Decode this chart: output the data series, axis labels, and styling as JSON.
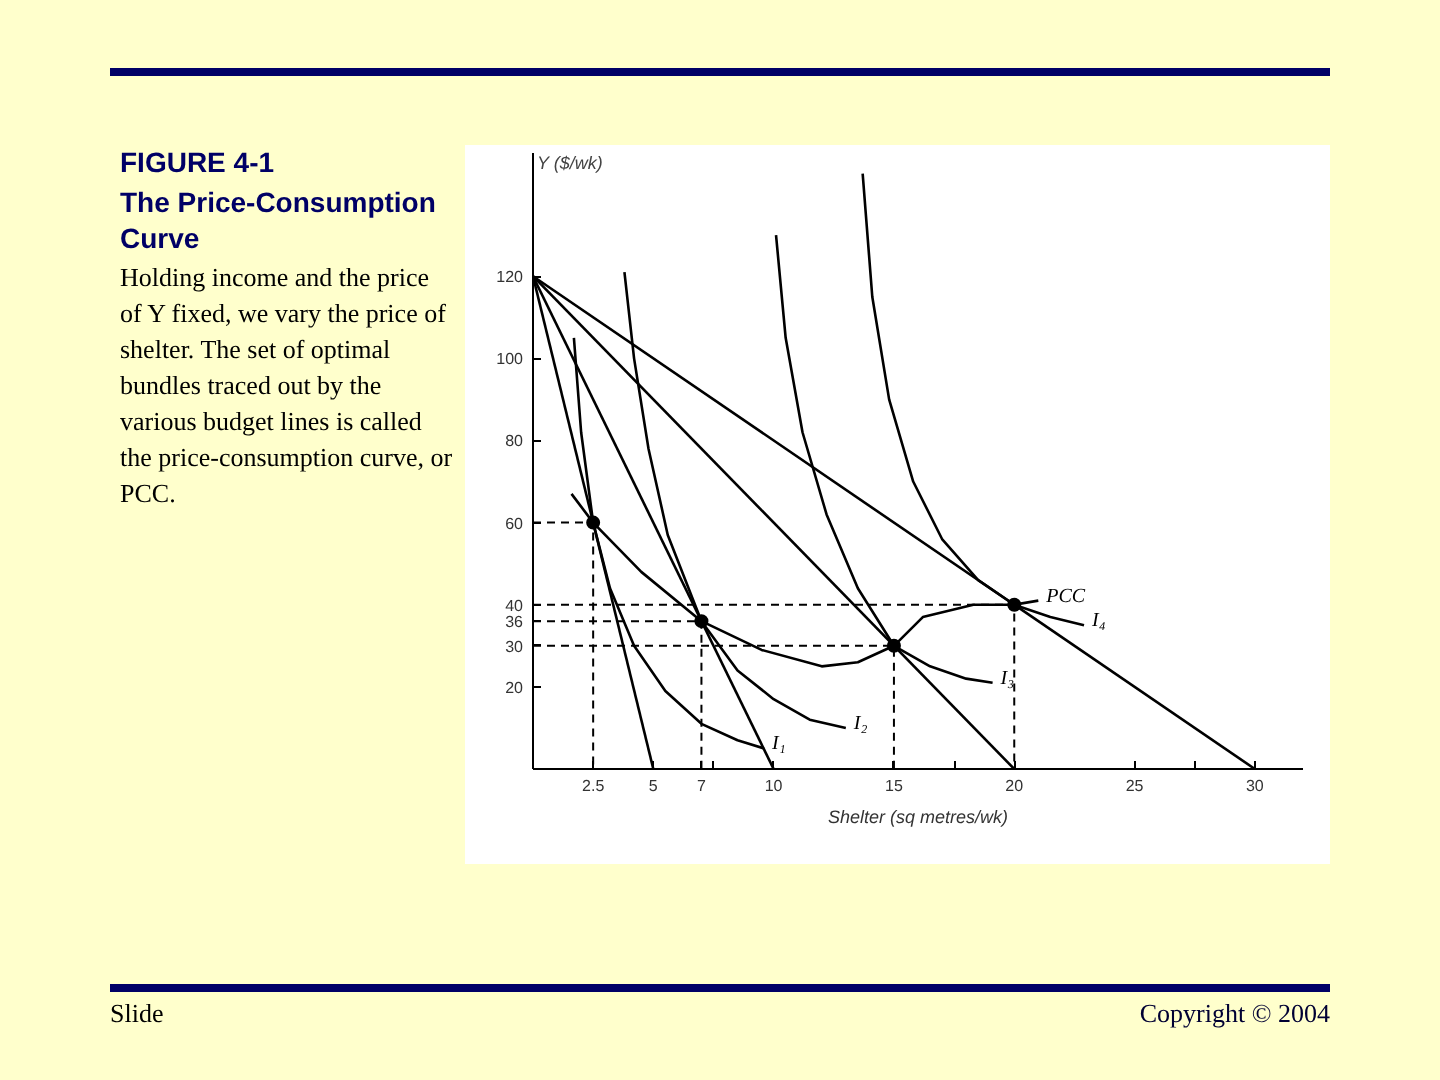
{
  "chart_data": {
    "type": "line",
    "title": "FIGURE 4-1",
    "subtitle": "The Price-Consumption Curve",
    "xlabel": "Shelter (sq metres/wk)",
    "ylabel": "Y ($/wk)",
    "annotations": [
      "Holding income and the price of Y fixed, we vary the price of shelter. The set of optimal bundles traced out by the various budget lines is called the price-consumption curve, or PCC.",
      "Slide",
      "Copyright © 2004"
    ],
    "xlim": [
      0,
      32
    ],
    "ylim": [
      0,
      150
    ],
    "xticks": [
      2.5,
      5,
      7,
      {
        "value": 7.5,
        "label": null
      },
      10,
      15,
      {
        "value": 17.5,
        "label": null
      },
      20,
      25,
      {
        "value": 27.5,
        "label": null
      },
      30
    ],
    "yticks": [
      20,
      30,
      36,
      40,
      60,
      80,
      100,
      120
    ],
    "grid": false,
    "series": [
      {
        "color": "#000000",
        "x": [
          0,
          5
        ],
        "values": [
          120,
          0
        ],
        "line_style": "solid",
        "marker": "none"
      },
      {
        "color": "#000000",
        "x": [
          0,
          10
        ],
        "values": [
          120,
          0
        ],
        "line_style": "solid",
        "marker": "none"
      },
      {
        "color": "#000000",
        "x": [
          0,
          20
        ],
        "values": [
          120,
          0
        ],
        "line_style": "solid",
        "marker": "none"
      },
      {
        "color": "#000000",
        "x": [
          0,
          30
        ],
        "values": [
          120,
          0
        ],
        "line_style": "solid",
        "marker": "none"
      },
      {
        "name": "I₁",
        "color": "#000000",
        "x": [
          1.7,
          2.0,
          2.5,
          3.2,
          4.2,
          5.5,
          7.0,
          8.5,
          9.6
        ],
        "values": [
          105,
          82,
          60,
          44,
          30,
          19,
          11,
          7,
          5
        ],
        "line_style": "solid",
        "marker": "none"
      },
      {
        "name": "I₂",
        "color": "#000000",
        "x": [
          3.8,
          4.2,
          4.8,
          5.6,
          7.0,
          8.5,
          10.0,
          11.5,
          13.0
        ],
        "values": [
          121,
          100,
          78,
          57,
          36,
          24,
          17,
          12,
          10
        ],
        "line_style": "solid",
        "marker": "none"
      },
      {
        "name": "I₃",
        "color": "#000000",
        "x": [
          10.1,
          10.5,
          11.2,
          12.2,
          13.5,
          15.0,
          16.5,
          18.0,
          19.1
        ],
        "values": [
          130,
          105,
          82,
          62,
          44,
          30,
          25,
          22,
          21
        ],
        "line_style": "solid",
        "marker": "none"
      },
      {
        "name": "I₄",
        "color": "#000000",
        "x": [
          13.7,
          14.1,
          14.8,
          15.8,
          17.0,
          18.5,
          20.0,
          21.5,
          22.9
        ],
        "values": [
          145,
          115,
          90,
          70,
          56,
          46,
          40,
          37,
          35
        ],
        "line_style": "solid",
        "marker": "none"
      },
      {
        "name": "PCC",
        "color": "#000000",
        "x": [
          1.6,
          2.5,
          4.5,
          7.0,
          9.5,
          12.0,
          13.5,
          15.0,
          16.2,
          18.3,
          20.0,
          21.0
        ],
        "values": [
          67,
          60,
          48,
          36,
          29,
          25,
          26,
          30,
          37,
          40,
          40,
          41
        ],
        "line_style": "solid",
        "marker": "none"
      },
      {
        "type": "scatter",
        "color": "#000000",
        "x": [
          2.5,
          7,
          15,
          20
        ],
        "values": [
          60,
          36,
          30,
          40
        ],
        "marker": "circle"
      },
      {
        "color": "#000000",
        "x": [
          0,
          2.5,
          2.5
        ],
        "values": [
          60,
          60,
          0
        ],
        "line_style": "dashed",
        "marker": "none"
      },
      {
        "color": "#000000",
        "x": [
          0,
          7,
          7
        ],
        "values": [
          36,
          36,
          0
        ],
        "line_style": "dashed",
        "marker": "none"
      },
      {
        "color": "#000000",
        "x": [
          0,
          15,
          15
        ],
        "values": [
          30,
          30,
          0
        ],
        "line_style": "dashed",
        "marker": "none"
      },
      {
        "color": "#000000",
        "x": [
          0,
          20,
          20
        ],
        "values": [
          40,
          40,
          0
        ],
        "line_style": "dashed",
        "marker": "none"
      }
    ]
  }
}
